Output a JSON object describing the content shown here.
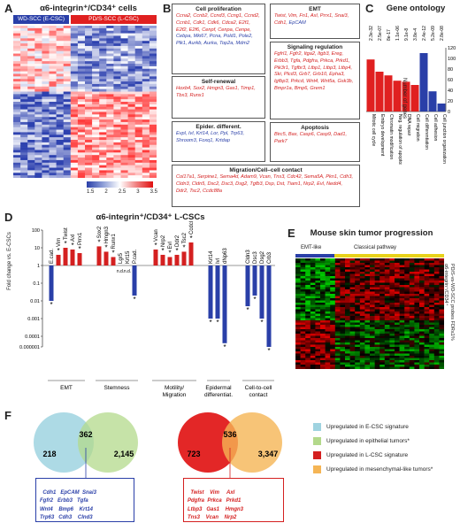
{
  "panelA": {
    "label": "A",
    "title": "α6-integrin⁺/CD34⁺ cells",
    "left_tag": "WD-SCC (E-CSC)",
    "right_tag": "PD/S-SCC (L-CSC)",
    "scale_ticks": [
      "1.5",
      "2",
      "2.5",
      "3",
      "3.5"
    ]
  },
  "panelB": {
    "label": "B",
    "cell_proliferation": {
      "title": "Cell proliferation",
      "red": "Ccna2, Ccnb2, Ccnd3, Ccng1, Ccnd2, Ccnb1, Cdk1, Cdk6, Cdca2, E2f1, E2f2, E2f6, Cenpf, Cenpa, Cenpe,",
      "blue": "Cebpa, Mki67, Pcna, Pold1, Pole2, Plk1, Aurkb, Aurka, Top2a, Mdm2"
    },
    "self_renewal": {
      "title": "Self-renewal",
      "red": "Hoxb4, Sox2, Hmgn3, Gas1, Timp1, Tbx3, Runx1"
    },
    "epider_different": {
      "title": "Epider. different.",
      "blue": "Evpl, Ivl, Krt14, Lor, Ppl, Trp63, Shroom3, Foxq1, Krtdap"
    },
    "emt": {
      "title": "EMT",
      "red": "Twist, Vim, Fn1, Axl, Prrx1, Snai3, Cdh1,",
      "blue": "EpCAM"
    },
    "signaling": {
      "title": "Signaling regulation",
      "red": "Fgfrl1, Fgfr2, Itga2, Itgb3, Ereg, Erbb3, Tgfa, Pdgfra, Prkca, Prkd1, Pik3r1, Tgfbr3, Ltbp1, Ltbp3, Ltbp4, Ski, Plcd3, Grb7, Grb10, Epha3, Igfbp3, Prkcd, Wnt4, Wnt5a, Gsk3b, Bmpr1a, Bmp6, Grem1"
    },
    "apoptosis": {
      "title": "Apoptosis",
      "red": "Birc5, Bax, Casp6, Casp9, Dad1, Park7"
    },
    "migration": {
      "title": "Migration/Cell–cell contact",
      "red": "Col17a1, Serpine1, Sema4d, Adam9, Vcan, Tns3, Cdc42, Sema5A, Pkn1, Cdh3, Cldn3, Cldn5, Dsc2, Dsc3, Dsg2, Tgfb3, Dsp, Dst, Tiam1, Nrp2, Evl, Nedd4, Ddr2, Tsc2, Ccdc88a"
    }
  },
  "panelC": {
    "label": "C",
    "title": "Gene ontology",
    "y_label": "Number of genes",
    "chart_data": {
      "type": "bar",
      "categories": [
        "Mitotic cell cycle",
        "Embryo development",
        "Chromatin modification",
        "Neg. regulation of apoptosis",
        "DNA repair",
        "Cell migration",
        "Cell differentiation",
        "Cell adhesion",
        "Cell junction organization"
      ],
      "values": [
        98,
        75,
        68,
        58,
        56,
        50,
        110,
        38,
        15
      ],
      "pvalues": [
        "2.3e-32",
        "2.5e-07",
        "8e-17",
        "1.1e-06",
        "9.1e-8",
        "3.8e-4",
        "2.4e-12",
        "5.2e-09",
        "2.8e-08"
      ],
      "colors": [
        "#e02020",
        "#e02020",
        "#e02020",
        "#e02020",
        "#e02020",
        "#e02020",
        "#2a3fa8",
        "#2a3fa8",
        "#2a3fa8"
      ],
      "ylim": [
        0,
        120
      ],
      "yticks": [
        "0",
        "20",
        "40",
        "60",
        "80",
        "100",
        "120"
      ]
    }
  },
  "panelD": {
    "label": "D",
    "title": "α6-integrin⁺/CD34⁺ L-CSCs",
    "y_label": "Fold change vs. E-CSCs",
    "yticks": [
      "100",
      "10",
      "1",
      "0.1",
      "0.01",
      "0.001",
      "0.0001",
      "0.000001"
    ],
    "groups": [
      "EMT",
      "Stemness",
      "Motility/ Migration",
      "Epidermal differentiat.",
      "Cell-to-cell contact"
    ],
    "chart_data": {
      "type": "bar",
      "log_scale": true,
      "categories": [
        "E.cad.",
        "Vim",
        "Twist",
        "Axl",
        "Prrx1",
        "Sox2",
        "Hmgn3",
        "Runx1",
        "Lgr5",
        "Krt15",
        "P.cad.",
        "Vcan",
        "Nrp2",
        "Evl",
        "Ddr2",
        "Tsc2",
        "Ccdc88A",
        "Krt14",
        "Ivl",
        "dNp63",
        "Cldn3",
        "Dsc3",
        "Dsg2",
        "Crb3"
      ],
      "values": [
        0.01,
        4,
        10,
        8,
        5,
        12,
        6,
        3,
        null,
        null,
        0.02,
        8,
        4,
        3,
        4,
        6,
        20,
        0.001,
        0.001,
        5e-06,
        0.005,
        0.02,
        0.001,
        1e-06
      ],
      "labels_nd": [
        "Lgr5",
        "Krt15"
      ],
      "colors": {
        "up": "#d42020",
        "down": "#2a3fa8"
      }
    }
  },
  "panelE": {
    "label": "E",
    "title": "Mouse skin tumor progression",
    "left_tag": "EMT-like",
    "right_tag": "Classical pathway",
    "side_label": "PD/S-vs-WD-SCC probes FDR≤1%",
    "side_label2": "α6-integrin⁺/CD34⁺"
  },
  "panelF": {
    "label": "F",
    "venn1": {
      "left": "218",
      "overlap": "362",
      "right": "2,145"
    },
    "venn2": {
      "left": "723",
      "overlap": "536",
      "right": "3,347"
    },
    "genes1": "Cdh1   EpCAM  Snai3\nFgfr2   Erbb3   Tgfa\nWnt4    Bmp6    Krt14\nTrp63   Cdh3    Clnd3",
    "genes2": "Twist    Vim     Axl\nPdgfra  Prkca   Prkd1\nLtbp3   Gas1    Hmgn3\nTns3    Vcan    Nrp2",
    "legend": [
      {
        "label": "Upregulated in E-CSC signature",
        "color": "#9fd3e0"
      },
      {
        "label": "Upregulated in epithelial tumors*",
        "color": "#b3d98b"
      },
      {
        "label": "Upregulated in L-CSC signature",
        "color": "#d42020"
      },
      {
        "label": "Upregulated in mesenchymal-like tumors*",
        "color": "#f5b555"
      }
    ]
  }
}
